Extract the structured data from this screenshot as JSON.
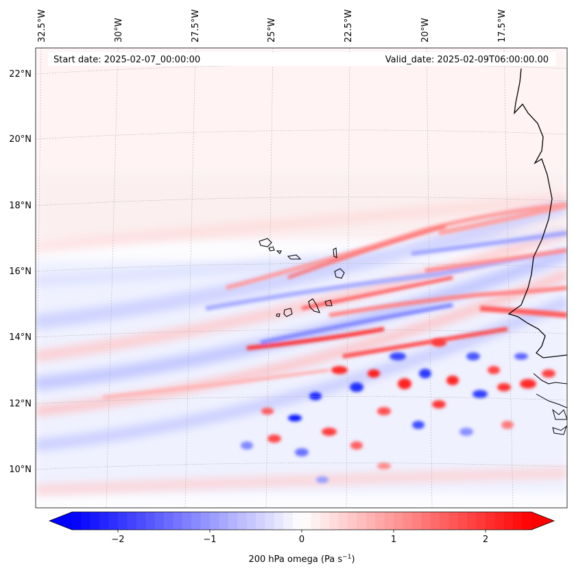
{
  "map": {
    "start_label": "Start date: 2025-02-07_00:00:00",
    "valid_label": "Valid_date: 2025-02-09T06:00:00.00",
    "lon_labels": [
      "32.5°W",
      "30°W",
      "27.5°W",
      "25°W",
      "22.5°W",
      "20°W",
      "17.5°W"
    ],
    "lat_labels": [
      "22°N",
      "20°N",
      "18°N",
      "16°N",
      "14°N",
      "12°N",
      "10°N"
    ],
    "colors": {
      "negative": "#0000ff",
      "positive": "#ff0000",
      "zero": "#ffffff",
      "coast": "#000000"
    }
  },
  "colorbar": {
    "label_text": "200 hPa omega (Pa s",
    "label_sup": "−1",
    "label_close": ")",
    "ticks": [
      "−2",
      "−1",
      "0",
      "1",
      "2"
    ],
    "tick_values": [
      -2,
      -1,
      0,
      1,
      2
    ],
    "range": [
      -2.5,
      2.5
    ]
  }
}
